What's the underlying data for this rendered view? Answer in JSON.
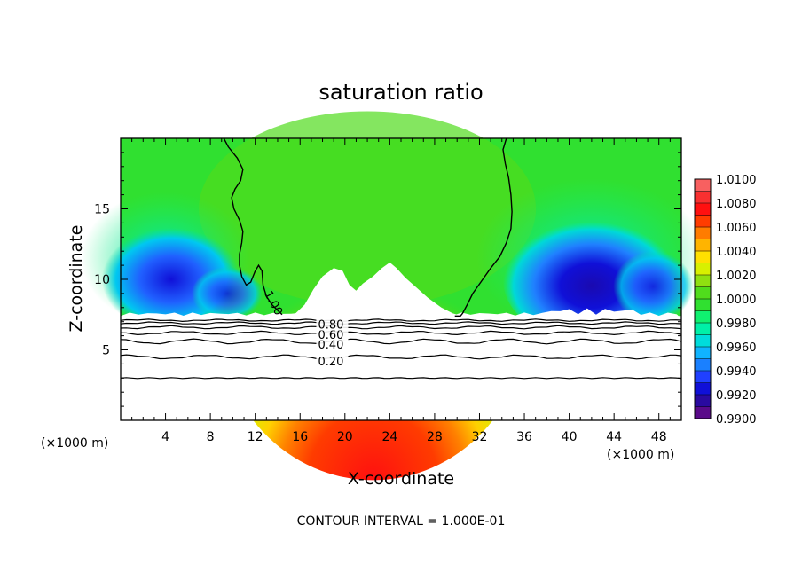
{
  "chart_data": {
    "type": "heatmap",
    "title": "saturation ratio",
    "xlabel": "X-coordinate",
    "ylabel": "Z-coordinate",
    "x_unit": "(×1000 m)",
    "xlim": [
      0,
      50
    ],
    "ylim": [
      0,
      20
    ],
    "x_ticks": [
      4,
      8,
      12,
      16,
      20,
      24,
      28,
      32,
      36,
      40,
      44,
      48
    ],
    "y_ticks": [
      5,
      10,
      15
    ],
    "colorbar": {
      "levels": [
        0.99,
        0.991,
        0.992,
        0.993,
        0.994,
        0.995,
        0.996,
        0.997,
        0.998,
        0.999,
        1.0,
        1.001,
        1.002,
        1.003,
        1.004,
        1.005,
        1.006,
        1.007,
        1.008,
        1.009,
        1.01
      ],
      "labels": [
        "0.9900",
        "0.9920",
        "0.9940",
        "0.9960",
        "0.9980",
        "1.0000",
        "1.0020",
        "1.0040",
        "1.0060",
        "1.0080",
        "1.0100"
      ],
      "colors": [
        "#5a0a8a",
        "#2a0aa0",
        "#1010d8",
        "#2040ff",
        "#1a80ff",
        "#10b4ff",
        "#00dcdc",
        "#00f0a8",
        "#10f070",
        "#30e030",
        "#50dc1c",
        "#90e010",
        "#d8f000",
        "#ffe000",
        "#ffb400",
        "#ff7c00",
        "#ff3c00",
        "#ff1010",
        "#f83030",
        "#f86060"
      ]
    },
    "contour_interval": "CONTOUR INTERVAL = 1.000E-01",
    "contour_labels": [
      "1.00",
      "0.20",
      "0.40",
      "0.60",
      "0.80"
    ]
  }
}
